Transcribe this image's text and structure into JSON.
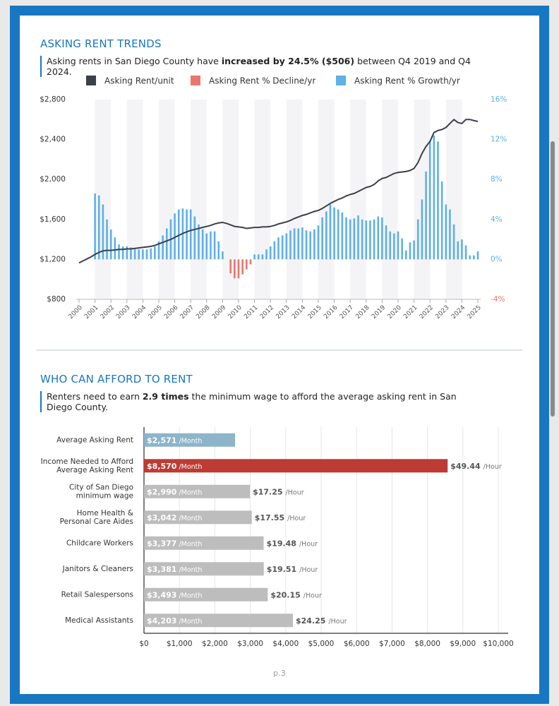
{
  "page": {
    "footer": "p.3"
  },
  "chart_data": [
    {
      "type": "combo",
      "title": "ASKING RENT TRENDS",
      "subtitle": {
        "pre": "Asking rents in San Diego County have ",
        "bold": "increased by 24.5% ($506)",
        "post": " between Q4 2019 and Q4 2024."
      },
      "x": [
        2000,
        2000.25,
        2000.5,
        2000.75,
        2001,
        2001.25,
        2001.5,
        2001.75,
        2002,
        2002.25,
        2002.5,
        2002.75,
        2003,
        2003.25,
        2003.5,
        2003.75,
        2004,
        2004.25,
        2004.5,
        2004.75,
        2005,
        2005.25,
        2005.5,
        2005.75,
        2006,
        2006.25,
        2006.5,
        2006.75,
        2007,
        2007.25,
        2007.5,
        2007.75,
        2008,
        2008.25,
        2008.5,
        2008.75,
        2009,
        2009.25,
        2009.5,
        2009.75,
        2010,
        2010.25,
        2010.5,
        2010.75,
        2011,
        2011.25,
        2011.5,
        2011.75,
        2012,
        2012.25,
        2012.5,
        2012.75,
        2013,
        2013.25,
        2013.5,
        2013.75,
        2014,
        2014.25,
        2014.5,
        2014.75,
        2015,
        2015.25,
        2015.5,
        2015.75,
        2016,
        2016.25,
        2016.5,
        2016.75,
        2017,
        2017.25,
        2017.5,
        2017.75,
        2018,
        2018.25,
        2018.5,
        2018.75,
        2019,
        2019.25,
        2019.5,
        2019.75,
        2020,
        2020.25,
        2020.5,
        2020.75,
        2021,
        2021.25,
        2021.5,
        2021.75,
        2022,
        2022.25,
        2022.5,
        2022.75,
        2023,
        2023.25,
        2023.5,
        2023.75,
        2024,
        2024.25,
        2024.5,
        2024.75,
        2025
      ],
      "xlim": [
        2000,
        2025
      ],
      "xticks": [
        2000,
        2001,
        2002,
        2003,
        2004,
        2005,
        2006,
        2007,
        2008,
        2009,
        2010,
        2011,
        2012,
        2013,
        2014,
        2015,
        2016,
        2017,
        2018,
        2019,
        2020,
        2021,
        2022,
        2023,
        2024,
        2025
      ],
      "ylim": [
        800,
        2800
      ],
      "yticks": [
        {
          "value": 800,
          "label": "$800"
        },
        {
          "value": 1200,
          "label": "$1,200"
        },
        {
          "value": 1600,
          "label": "$1,600"
        },
        {
          "value": 2000,
          "label": "$2,000"
        },
        {
          "value": 2400,
          "label": "$2,400"
        },
        {
          "value": 2800,
          "label": "$2,800"
        }
      ],
      "y2lim": [
        -4,
        16
      ],
      "y2ticks": [
        {
          "value": -4,
          "label": "-4%"
        },
        {
          "value": 0,
          "label": "0%"
        },
        {
          "value": 4,
          "label": "4%"
        },
        {
          "value": 8,
          "label": "8%"
        },
        {
          "value": 12,
          "label": "12%"
        },
        {
          "value": 16,
          "label": "16%"
        }
      ],
      "series": [
        {
          "name": "Asking Rent/unit",
          "type": "line",
          "color": "#3b3f48",
          "values": [
            1165,
            1185,
            1205,
            1225,
            1250,
            1270,
            1285,
            1290,
            1290,
            1295,
            1300,
            1300,
            1305,
            1305,
            1310,
            1315,
            1320,
            1325,
            1330,
            1340,
            1355,
            1370,
            1385,
            1400,
            1420,
            1440,
            1460,
            1475,
            1490,
            1500,
            1510,
            1520,
            1530,
            1540,
            1555,
            1565,
            1570,
            1560,
            1545,
            1530,
            1525,
            1520,
            1510,
            1515,
            1520,
            1520,
            1525,
            1525,
            1530,
            1540,
            1555,
            1565,
            1575,
            1590,
            1610,
            1625,
            1640,
            1650,
            1665,
            1680,
            1690,
            1710,
            1735,
            1760,
            1780,
            1800,
            1815,
            1835,
            1850,
            1860,
            1880,
            1900,
            1920,
            1930,
            1950,
            1985,
            2010,
            2020,
            2040,
            2060,
            2070,
            2075,
            2080,
            2090,
            2110,
            2170,
            2260,
            2330,
            2380,
            2470,
            2490,
            2500,
            2520,
            2560,
            2600,
            2570,
            2560,
            2600,
            2600,
            2590,
            2580
          ]
        },
        {
          "name": "Asking Rent % Decline/yr",
          "type": "bar",
          "axis": "y2",
          "color": "#e8766e",
          "values": [
            null,
            null,
            null,
            null,
            null,
            null,
            null,
            null,
            null,
            null,
            null,
            null,
            null,
            null,
            null,
            null,
            null,
            null,
            null,
            null,
            null,
            null,
            null,
            null,
            null,
            null,
            null,
            null,
            null,
            null,
            null,
            null,
            null,
            null,
            null,
            null,
            null,
            null,
            -1.4,
            -1.9,
            -1.9,
            -1.5,
            -1.0,
            -0.5,
            null,
            null,
            null,
            null,
            null,
            null,
            null,
            null,
            null,
            null,
            null,
            null,
            null,
            null,
            null,
            null,
            null,
            null,
            null,
            null,
            null,
            null,
            null,
            null,
            null,
            null,
            null,
            null,
            null,
            null,
            null,
            null,
            null,
            null,
            null,
            null,
            null,
            null,
            null,
            null,
            null,
            null,
            null,
            null,
            null,
            null,
            null,
            null,
            null,
            null,
            null,
            null,
            null,
            null,
            null,
            null,
            null
          ]
        },
        {
          "name": "Asking Rent % Growth/yr",
          "type": "bar",
          "axis": "y2",
          "color": "#5fb0e6",
          "values": [
            null,
            null,
            null,
            null,
            6.6,
            6.4,
            5.5,
            4.0,
            3.0,
            2.2,
            1.5,
            1.3,
            1.3,
            1.2,
            1.0,
            1.0,
            1.0,
            1.0,
            1.1,
            1.3,
            1.8,
            2.4,
            3.1,
            4.0,
            4.6,
            5.0,
            5.1,
            5.0,
            5.0,
            4.3,
            3.5,
            3.0,
            2.6,
            2.8,
            2.8,
            1.8,
            0.8,
            null,
            null,
            null,
            null,
            null,
            null,
            null,
            0.5,
            0.5,
            0.5,
            1.0,
            1.3,
            1.8,
            2.2,
            2.4,
            2.6,
            2.9,
            3.1,
            3.1,
            3.2,
            2.9,
            2.8,
            3.0,
            3.4,
            4.2,
            4.8,
            5.5,
            5.2,
            5.0,
            4.7,
            4.2,
            4.0,
            4.1,
            4.4,
            4.0,
            3.9,
            3.9,
            4.0,
            4.3,
            4.2,
            3.4,
            2.8,
            2.6,
            2.8,
            2.1,
            0.9,
            1.7,
            1.9,
            4.0,
            6.0,
            8.8,
            11.8,
            12.4,
            11.8,
            7.8,
            5.5,
            5.0,
            3.5,
            1.8,
            2.0,
            1.4,
            0.4,
            0.4,
            0.8
          ]
        }
      ]
    },
    {
      "type": "hbar",
      "title": "WHO CAN AFFORD TO RENT",
      "subtitle": {
        "pre": "Renters need to earn ",
        "bold": "2.9 times",
        "post": " the minimum wage to afford the average asking rent in San Diego County."
      },
      "categories": [
        [
          "Average Asking Rent"
        ],
        [
          "Income Needed to Afford",
          "Average Asking Rent"
        ],
        [
          "City of San Diego",
          "minimum wage"
        ],
        [
          "Home Health &",
          "Personal Care Aides"
        ],
        [
          "Childcare Workers"
        ],
        [
          "Janitors & Cleaners"
        ],
        [
          "Retail Salespersons"
        ],
        [
          "Medical Assistants"
        ]
      ],
      "values": [
        2571,
        8570,
        2990,
        3042,
        3377,
        3381,
        3493,
        4203
      ],
      "value_labels": [
        "$2,571",
        "$8,570",
        "$2,990",
        "$3,042",
        "$3,377",
        "$3,381",
        "$3,493",
        "$4,203"
      ],
      "value_suffix": "/Month",
      "hourly_labels": [
        null,
        "$49.44",
        "$17.25",
        "$17.55",
        "$19.48",
        "$19.51",
        "$20.15",
        "$24.25"
      ],
      "hourly_suffix": "/Hour",
      "colors": [
        "#8db4c9",
        "#bd3b33",
        "#bdbdbd",
        "#bdbdbd",
        "#bdbdbd",
        "#bdbdbd",
        "#bdbdbd",
        "#bdbdbd"
      ],
      "xlim": [
        0,
        10000
      ],
      "xticks": [
        {
          "value": 0,
          "label": "$0"
        },
        {
          "value": 1000,
          "label": "$1,000"
        },
        {
          "value": 2000,
          "label": "$2,000"
        },
        {
          "value": 3000,
          "label": "$3,000"
        },
        {
          "value": 4000,
          "label": "$4,000"
        },
        {
          "value": 5000,
          "label": "$5,000"
        },
        {
          "value": 6000,
          "label": "$6,000"
        },
        {
          "value": 7000,
          "label": "$7,000"
        },
        {
          "value": 8000,
          "label": "$8,000"
        },
        {
          "value": 9000,
          "label": "$9,000"
        },
        {
          "value": 10000,
          "label": "$10,000"
        }
      ],
      "grid": true
    }
  ]
}
